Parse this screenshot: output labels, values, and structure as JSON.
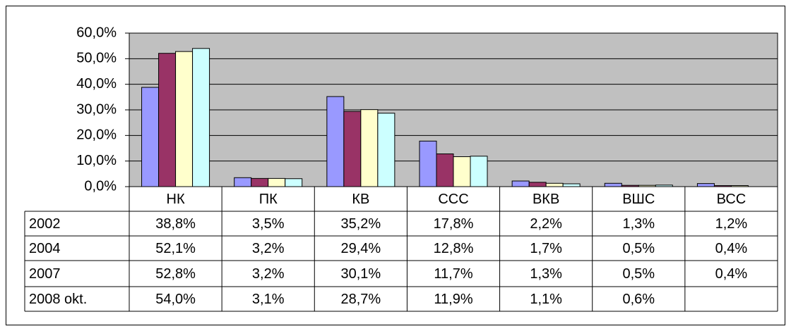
{
  "chart_data": {
    "type": "bar",
    "categories": [
      "НК",
      "ПК",
      "КВ",
      "ССС",
      "ВКВ",
      "ВШС",
      "ВСС"
    ],
    "series": [
      {
        "name": "2002",
        "color": "#9999ff",
        "values": [
          38.8,
          3.5,
          35.2,
          17.8,
          2.2,
          1.3,
          1.2
        ],
        "value_labels": [
          "38,8%",
          "3,5%",
          "35,2%",
          "17,8%",
          "2,2%",
          "1,3%",
          "1,2%"
        ]
      },
      {
        "name": "2004",
        "color": "#993366",
        "values": [
          52.1,
          3.2,
          29.4,
          12.8,
          1.7,
          0.5,
          0.4
        ],
        "value_labels": [
          "52,1%",
          "3,2%",
          "29,4%",
          "12,8%",
          "1,7%",
          "0,5%",
          "0,4%"
        ]
      },
      {
        "name": "2007",
        "color": "#ffffcc",
        "values": [
          52.8,
          3.2,
          30.1,
          11.7,
          1.3,
          0.5,
          0.4
        ],
        "value_labels": [
          "52,8%",
          "3,2%",
          "30,1%",
          "11,7%",
          "1,3%",
          "0,5%",
          "0,4%"
        ]
      },
      {
        "name": "2008 okt.",
        "color": "#ccffff",
        "values": [
          54.0,
          3.1,
          28.7,
          11.9,
          1.1,
          0.6,
          null
        ],
        "value_labels": [
          "54,0%",
          "3,1%",
          "28,7%",
          "11,9%",
          "1,1%",
          "0,6%",
          null
        ]
      }
    ],
    "ylim": [
      0,
      60
    ],
    "yticks": [
      {
        "value": 0,
        "label": "0,0%"
      },
      {
        "value": 10,
        "label": "10,0%"
      },
      {
        "value": 20,
        "label": "20,0%"
      },
      {
        "value": 30,
        "label": "30,0%"
      },
      {
        "value": 40,
        "label": "40,0%"
      },
      {
        "value": 50,
        "label": "50,0%"
      },
      {
        "value": 60,
        "label": "60,0%"
      }
    ],
    "grid": true,
    "plot_background": "#c0c0c0"
  }
}
